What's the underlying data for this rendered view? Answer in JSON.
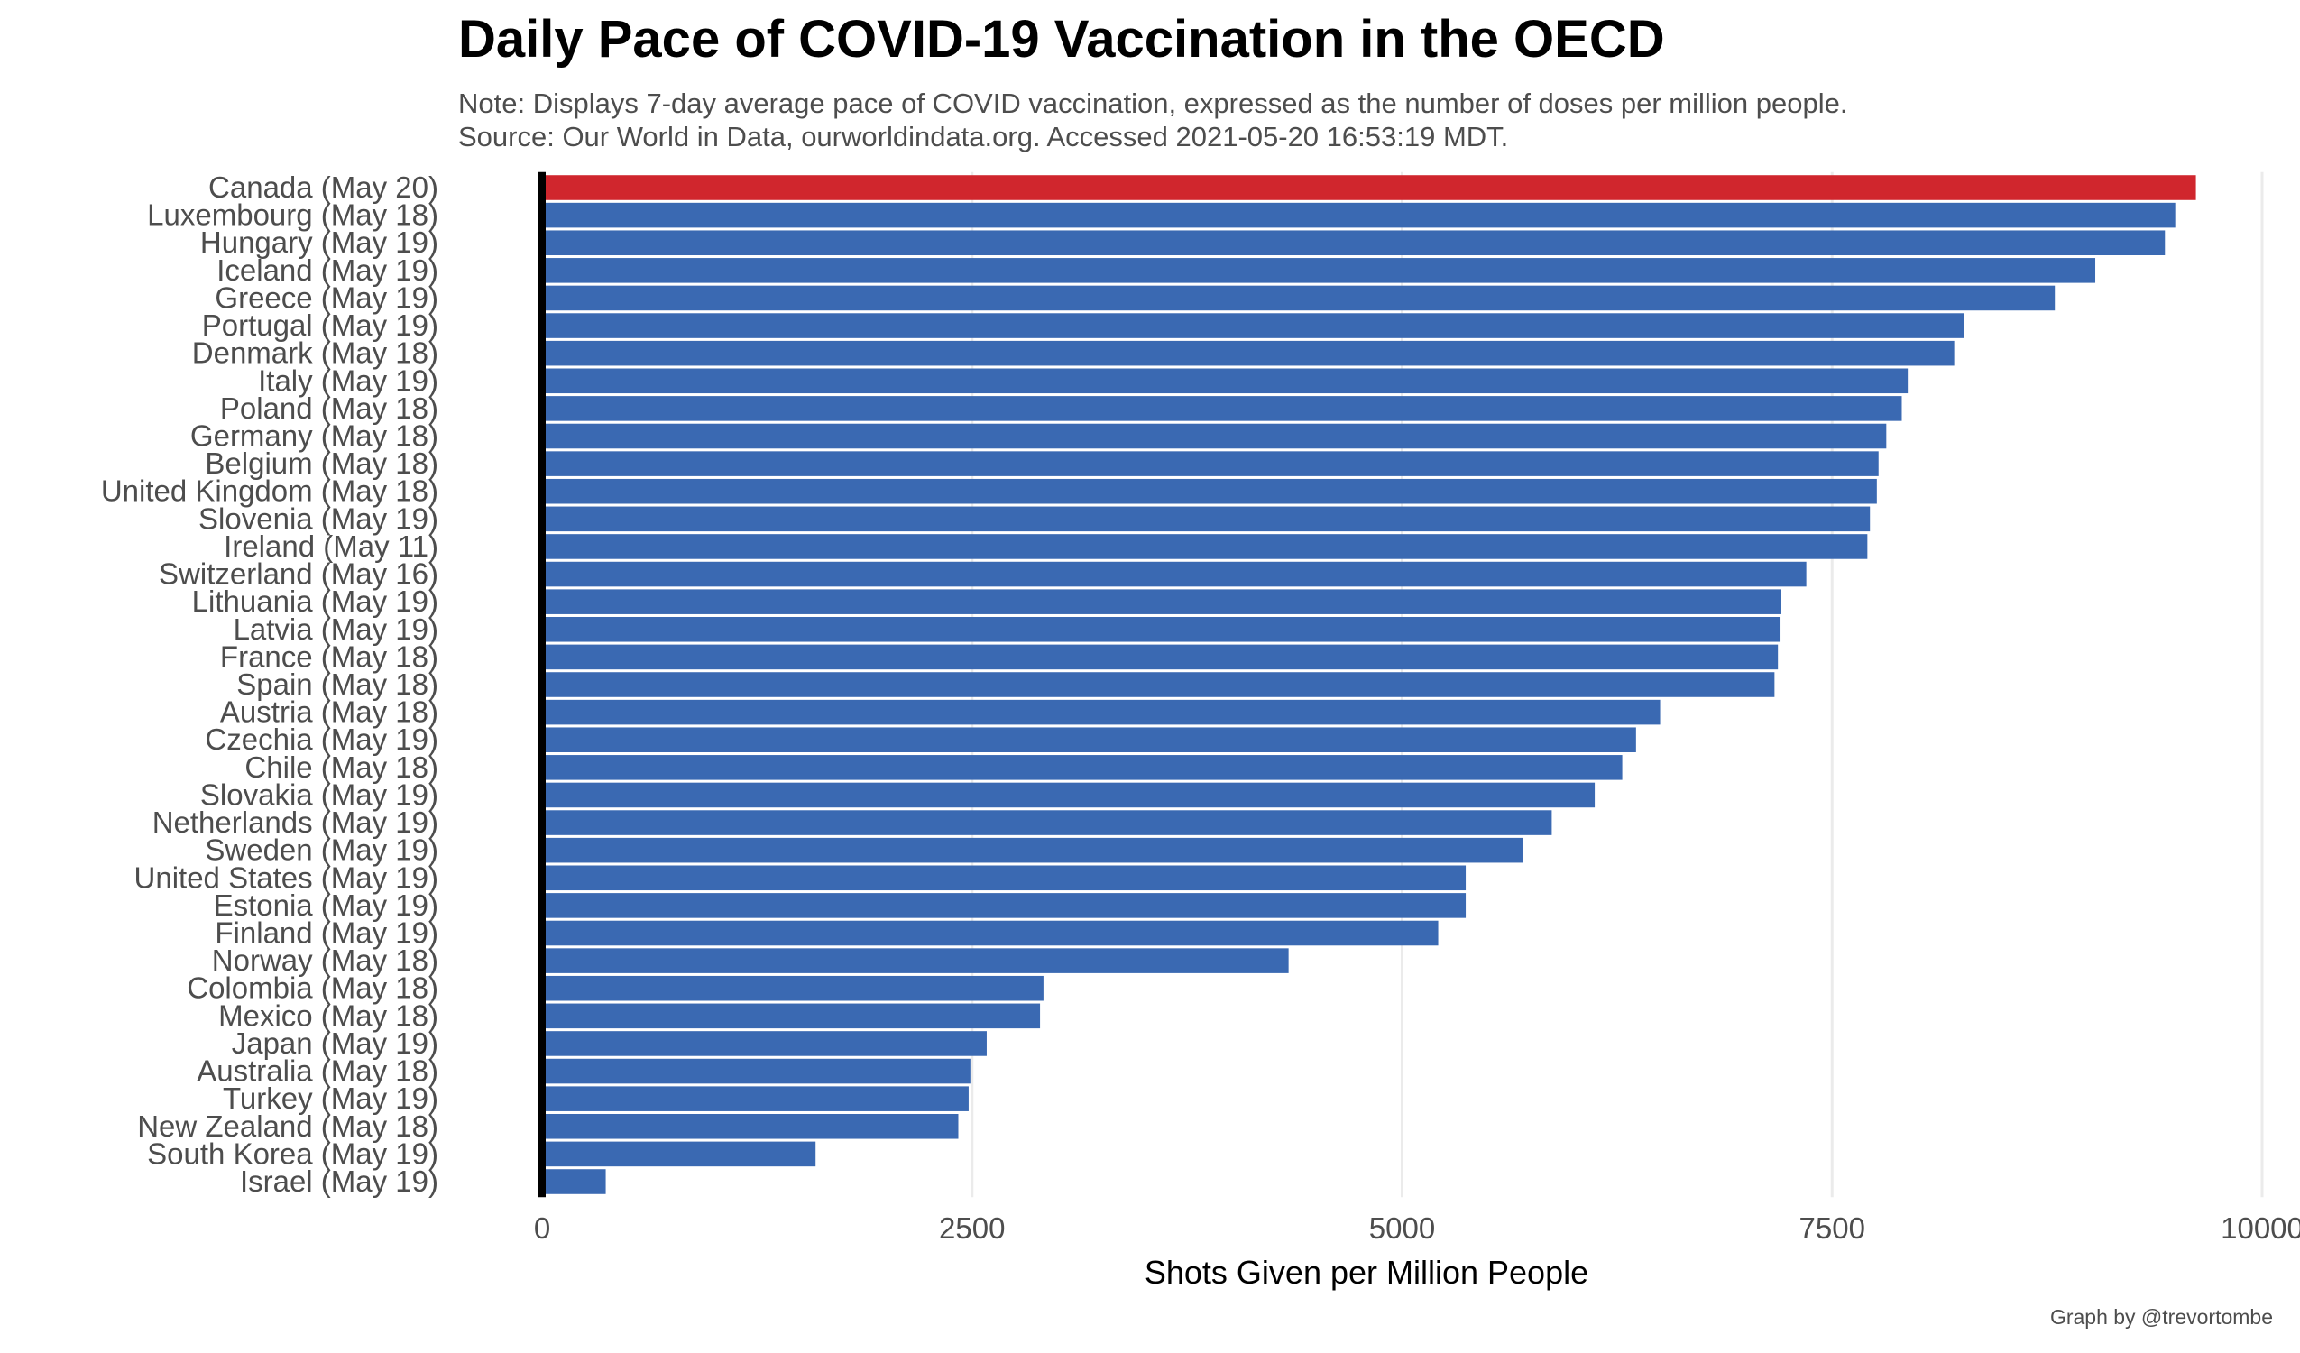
{
  "caption": "Graph by @trevortombe",
  "colors": {
    "highlight": "#d0262d",
    "bar": "#3a69b2",
    "grid": "#ebebeb",
    "zero_line": "#000000"
  },
  "chart_data": {
    "type": "bar",
    "orientation": "horizontal",
    "title": "Daily Pace of COVID-19 Vaccination in the OECD",
    "subtitle": [
      "Note: Displays 7-day average pace of COVID vaccination, expressed as the number of doses per million people.",
      "Source: Our World in Data, ourworldindata.org. Accessed 2021-05-20 16:53:19  MDT."
    ],
    "xlabel": "Shots Given per Million People",
    "ylabel": "",
    "xlim": [
      0,
      10000
    ],
    "x_ticks": [
      0,
      2500,
      5000,
      7500,
      10000
    ],
    "x_tick_labels": [
      "0",
      "2500",
      "5000",
      "7500",
      "10000"
    ],
    "grid": true,
    "legend": "none",
    "highlight_category": "Canada (May 20)",
    "categories": [
      "Canada (May 20)",
      "Luxembourg (May 18)",
      "Hungary (May 19)",
      "Iceland (May 19)",
      "Greece (May 19)",
      "Portugal (May 19)",
      "Denmark (May 18)",
      "Italy (May 19)",
      "Poland (May 18)",
      "Germany (May 18)",
      "Belgium (May 18)",
      "United Kingdom (May 18)",
      "Slovenia (May 19)",
      "Ireland (May 11)",
      "Switzerland (May 16)",
      "Lithuania (May 19)",
      "Latvia (May 19)",
      "France (May 18)",
      "Spain (May 18)",
      "Austria (May 18)",
      "Czechia (May 19)",
      "Chile (May 18)",
      "Slovakia (May 19)",
      "Netherlands (May 19)",
      "Sweden (May 19)",
      "United States (May 19)",
      "Estonia (May 19)",
      "Finland (May 19)",
      "Norway (May 18)",
      "Colombia (May 18)",
      "Mexico (May 18)",
      "Japan (May 19)",
      "Australia (May 18)",
      "Turkey (May 19)",
      "New Zealand (May 18)",
      "South Korea (May 19)",
      "Israel (May 19)"
    ],
    "values": [
      9615,
      9495,
      9435,
      9030,
      8795,
      8265,
      8210,
      7940,
      7905,
      7815,
      7770,
      7760,
      7720,
      7705,
      7350,
      7205,
      7200,
      7185,
      7165,
      6500,
      6360,
      6280,
      6120,
      5870,
      5700,
      5370,
      5370,
      5210,
      4340,
      2915,
      2895,
      2585,
      2490,
      2480,
      2420,
      1590,
      370
    ]
  }
}
